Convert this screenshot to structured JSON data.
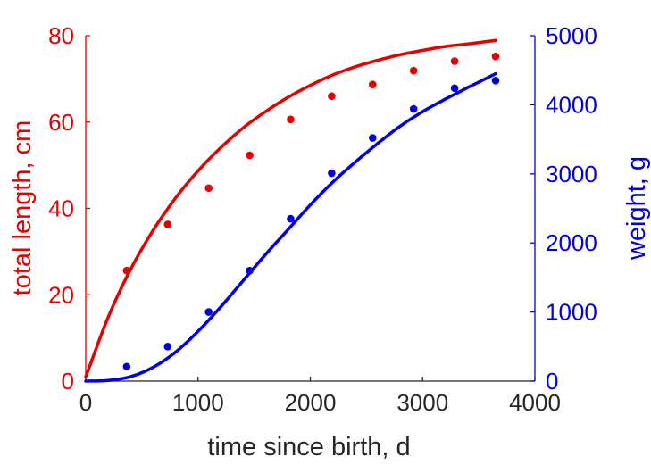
{
  "chart_data": {
    "type": "scatter",
    "xlabel": "time since birth, d",
    "ylabel_left": "total length, cm",
    "ylabel_right": "weight, g",
    "xlim": [
      0,
      4000
    ],
    "ylim_left": [
      0,
      80
    ],
    "ylim_right": [
      0,
      5000
    ],
    "x_ticks": [
      0,
      1000,
      2000,
      3000,
      4000
    ],
    "y_left_ticks": [
      0,
      20,
      40,
      60,
      80
    ],
    "y_right_ticks": [
      0,
      1000,
      2000,
      3000,
      4000,
      5000
    ],
    "grid": false,
    "legend": "none",
    "colors": {
      "length": "#e60000",
      "weight": "#0000e6",
      "axis": "#262626"
    },
    "series": [
      {
        "axis": "left",
        "type": "scatter",
        "x": [
          365,
          730,
          1095,
          1460,
          1825,
          2190,
          2555,
          2920,
          3285,
          3650
        ],
        "y": [
          25.6,
          36.3,
          44.7,
          52.3,
          60.6,
          66.0,
          68.7,
          71.9,
          74.1,
          75.2
        ]
      },
      {
        "axis": "left",
        "type": "line",
        "x": [
          0,
          200,
          400,
          600,
          800,
          1000,
          1200,
          1400,
          1600,
          1800,
          2000,
          2200,
          2400,
          2600,
          2800,
          3000,
          3200,
          3400,
          3650
        ],
        "y": [
          1.0,
          14.8,
          25.9,
          34.9,
          42.4,
          48.7,
          54.0,
          58.6,
          62.4,
          65.7,
          68.5,
          70.9,
          72.8,
          74.3,
          75.6,
          76.6,
          77.5,
          78.1,
          78.9
        ]
      },
      {
        "axis": "right",
        "type": "scatter",
        "x": [
          365,
          730,
          1095,
          1460,
          1825,
          2190,
          2555,
          2920,
          3285,
          3650
        ],
        "y": [
          210,
          500,
          1000,
          1600,
          2350,
          3010,
          3520,
          3940,
          4240,
          4350
        ]
      },
      {
        "axis": "right",
        "type": "line",
        "x": [
          0,
          200,
          400,
          600,
          800,
          1000,
          1200,
          1400,
          1600,
          1800,
          2000,
          2200,
          2400,
          2600,
          2800,
          3000,
          3200,
          3400,
          3650
        ],
        "y": [
          0,
          10,
          65,
          200,
          420,
          720,
          1070,
          1450,
          1830,
          2190,
          2550,
          2880,
          3170,
          3440,
          3690,
          3900,
          4080,
          4250,
          4450
        ]
      }
    ]
  }
}
